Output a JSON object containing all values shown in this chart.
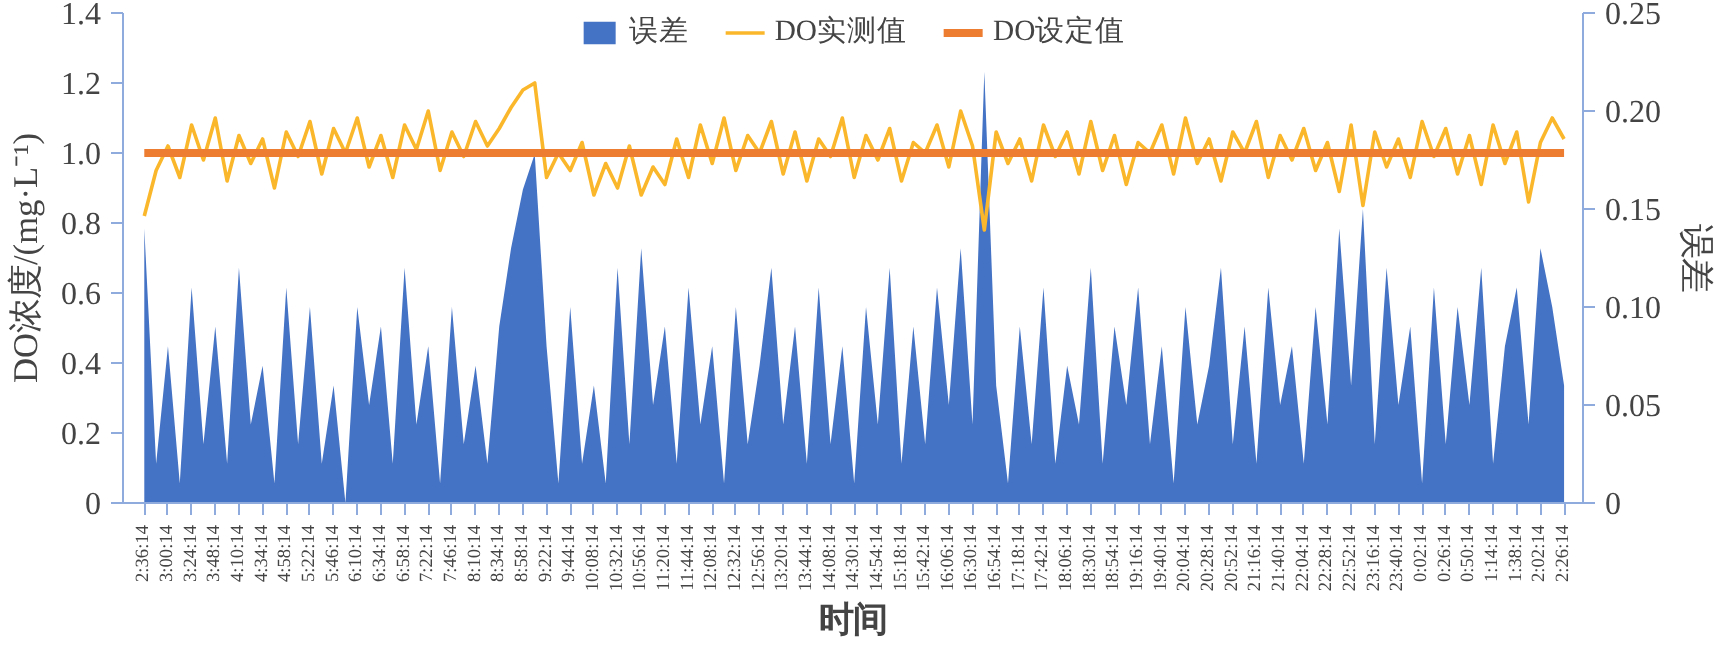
{
  "chart_data": {
    "type": "line",
    "xlabel": "时间",
    "ylabel": "DO浓度/(mg·L⁻¹)",
    "y2label": "误差",
    "legend": "top",
    "grid": false,
    "ylim": [
      0,
      1.4
    ],
    "yticks": [
      0,
      0.2,
      0.4,
      0.6,
      0.8,
      {
        "value": 1,
        "label": "1.0"
      },
      1.2,
      1.4
    ],
    "y2lim": [
      0,
      0.25
    ],
    "y2ticks": [
      0,
      0.05,
      {
        "value": 0.1,
        "label": "0.10"
      },
      0.15,
      {
        "value": 0.2,
        "label": "0.20"
      },
      0.25
    ],
    "categories": [
      "2:36:14",
      null,
      "3:00:14",
      null,
      "3:24:14",
      null,
      "3:48:14",
      null,
      "4:10:14",
      null,
      "4:34:14",
      null,
      "4:58:14",
      null,
      "5:22:14",
      null,
      "5:46:14",
      null,
      "6:10:14",
      null,
      "6:34:14",
      null,
      "6:58:14",
      null,
      "7:22:14",
      null,
      "7:46:14",
      null,
      "8:10:14",
      null,
      "8:34:14",
      null,
      "8:58:14",
      null,
      "9:22:14",
      null,
      "9:44:14",
      null,
      "10:08:14",
      null,
      "10:32:14",
      null,
      "10:56:14",
      null,
      "11:20:14",
      null,
      "11:44:14",
      null,
      "12:08:14",
      null,
      "12:32:14",
      null,
      "12:56:14",
      null,
      "13:20:14",
      null,
      "13:44:14",
      null,
      "14:08:14",
      null,
      "14:30:14",
      null,
      "14:54:14",
      null,
      "15:18:14",
      null,
      "15:42:14",
      null,
      "16:06:14",
      null,
      "16:30:14",
      null,
      "16:54:14",
      null,
      "17:18:14",
      null,
      "17:42:14",
      null,
      "18:06:14",
      null,
      "18:30:14",
      null,
      "18:54:14",
      null,
      "19:16:14",
      null,
      "19:40:14",
      null,
      "20:04:14",
      null,
      "20:28:14",
      null,
      "20:52:14",
      null,
      "21:16:14",
      null,
      "21:40:14",
      null,
      "22:04:14",
      null,
      "22:28:14",
      null,
      "22:52:14",
      null,
      "23:16:14",
      null,
      "23:40:14",
      null,
      "0:02:14",
      null,
      "0:26:14",
      null,
      "0:50:14",
      null,
      "1:14:14",
      null,
      "1:38:14",
      null,
      "2:02:14",
      null,
      "2:26:14"
    ],
    "series": [
      {
        "name": "误差",
        "type": "area",
        "axis": "y2",
        "color": "#4472c4",
        "values": [
          0.14,
          0.02,
          0.08,
          0.01,
          0.11,
          0.03,
          0.09,
          0.02,
          0.12,
          0.04,
          0.07,
          0.01,
          0.11,
          0.03,
          0.1,
          0.02,
          0.06,
          0.0,
          0.1,
          0.05,
          0.09,
          0.02,
          0.12,
          0.04,
          0.08,
          0.01,
          0.1,
          0.03,
          0.07,
          0.02,
          0.09,
          0.13,
          0.16,
          0.178,
          0.08,
          0.01,
          0.1,
          0.02,
          0.06,
          0.01,
          0.12,
          0.03,
          0.13,
          0.05,
          0.09,
          0.02,
          0.11,
          0.04,
          0.08,
          0.01,
          0.1,
          0.03,
          0.07,
          0.12,
          0.04,
          0.09,
          0.02,
          0.11,
          0.03,
          0.08,
          0.01,
          0.1,
          0.04,
          0.12,
          0.02,
          0.09,
          0.03,
          0.11,
          0.05,
          0.13,
          0.04,
          0.22,
          0.06,
          0.01,
          0.09,
          0.03,
          0.11,
          0.02,
          0.07,
          0.04,
          0.12,
          0.02,
          0.09,
          0.05,
          0.11,
          0.03,
          0.08,
          0.01,
          0.1,
          0.04,
          0.07,
          0.12,
          0.03,
          0.09,
          0.02,
          0.11,
          0.05,
          0.08,
          0.02,
          0.1,
          0.04,
          0.14,
          0.06,
          0.15,
          0.03,
          0.12,
          0.05,
          0.09,
          0.01,
          0.11,
          0.03,
          0.1,
          0.05,
          0.12,
          0.02,
          0.08,
          0.11,
          0.04,
          0.13,
          0.1,
          0.06
        ]
      },
      {
        "name": "DO实测值",
        "color": "#fbb72c",
        "values": [
          0.82,
          0.95,
          1.02,
          0.93,
          1.08,
          0.98,
          1.1,
          0.92,
          1.05,
          0.97,
          1.04,
          0.9,
          1.06,
          0.99,
          1.09,
          0.94,
          1.07,
          1.0,
          1.1,
          0.96,
          1.05,
          0.93,
          1.08,
          1.01,
          1.12,
          0.95,
          1.06,
          0.99,
          1.09,
          1.02,
          1.07,
          1.13,
          1.18,
          1.2,
          0.93,
          1.0,
          0.95,
          1.03,
          0.88,
          0.97,
          0.9,
          1.02,
          0.88,
          0.96,
          0.91,
          1.04,
          0.93,
          1.08,
          0.97,
          1.1,
          0.95,
          1.05,
          1.0,
          1.09,
          0.94,
          1.06,
          0.92,
          1.04,
          0.99,
          1.1,
          0.93,
          1.05,
          0.98,
          1.07,
          0.92,
          1.03,
          1.0,
          1.08,
          0.96,
          1.12,
          1.02,
          0.78,
          1.06,
          0.97,
          1.04,
          0.92,
          1.08,
          0.99,
          1.06,
          0.94,
          1.09,
          0.95,
          1.05,
          0.91,
          1.03,
          1.0,
          1.08,
          0.94,
          1.1,
          0.97,
          1.04,
          0.92,
          1.06,
          1.0,
          1.09,
          0.93,
          1.05,
          0.98,
          1.07,
          0.95,
          1.03,
          0.89,
          1.08,
          0.85,
          1.06,
          0.96,
          1.04,
          0.93,
          1.09,
          0.99,
          1.07,
          0.94,
          1.05,
          0.91,
          1.08,
          0.97,
          1.06,
          0.86,
          1.03,
          1.1,
          1.04
        ]
      },
      {
        "name": "DO设定值",
        "type": "line",
        "color": "#ed7d31",
        "values": [
          1,
          1,
          1,
          1,
          1,
          1,
          1,
          1,
          1,
          1,
          1,
          1,
          1,
          1,
          1,
          1,
          1,
          1,
          1,
          1,
          1,
          1,
          1,
          1,
          1,
          1,
          1,
          1,
          1,
          1,
          1,
          1,
          1,
          1,
          1,
          1,
          1,
          1,
          1,
          1,
          1,
          1,
          1,
          1,
          1,
          1,
          1,
          1,
          1,
          1,
          1,
          1,
          1,
          1,
          1,
          1,
          1,
          1,
          1,
          1,
          1,
          1,
          1,
          1,
          1,
          1,
          1,
          1,
          1,
          1,
          1,
          1,
          1,
          1,
          1,
          1,
          1,
          1,
          1,
          1,
          1,
          1,
          1,
          1,
          1,
          1,
          1,
          1,
          1,
          1,
          1,
          1,
          1,
          1,
          1,
          1,
          1,
          1,
          1,
          1,
          1,
          1,
          1,
          1,
          1,
          1,
          1,
          1,
          1,
          1,
          1,
          1,
          1,
          1,
          1,
          1,
          1,
          1,
          1,
          1,
          1
        ]
      }
    ]
  }
}
